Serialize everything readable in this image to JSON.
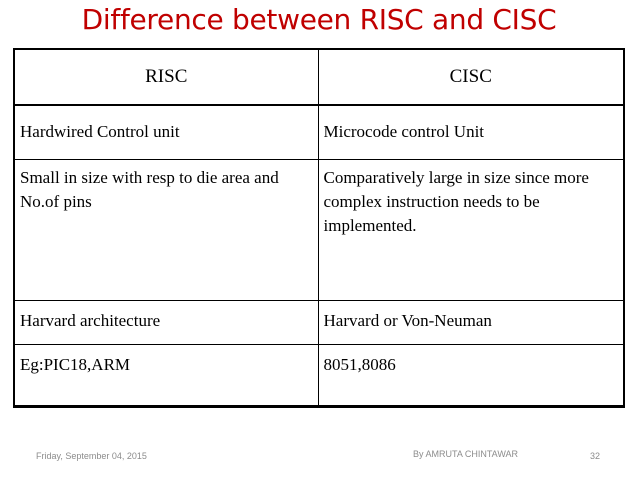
{
  "slide": {
    "title": "Difference between RISC and CISC"
  },
  "table": {
    "headers": [
      "RISC",
      "CISC"
    ],
    "rows": [
      [
        "Hardwired Control unit",
        "Microcode control Unit"
      ],
      [
        "Small in size with resp to die area and No.of pins",
        "Comparatively large in size since more complex instruction needs to be implemented."
      ],
      [
        "Harvard architecture",
        "Harvard or Von-Neuman"
      ],
      [
        "Eg:PIC18,ARM",
        "8051,8086"
      ]
    ]
  },
  "footer": {
    "date": "Friday, September 04, 2015",
    "author": "By AMRUTA CHINTAWAR",
    "page_number": "32"
  },
  "colors": {
    "title": "#c00000",
    "text": "#000000",
    "footer": "#8c8c8c"
  }
}
